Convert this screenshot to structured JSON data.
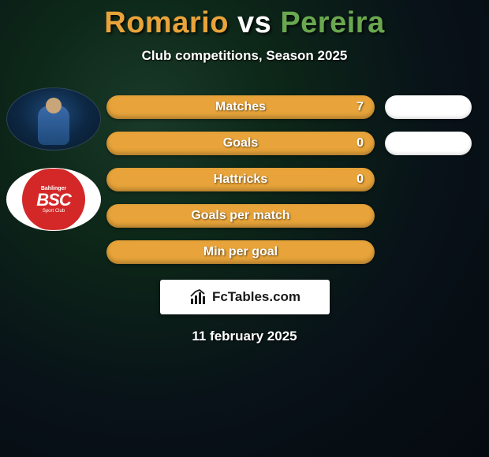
{
  "title": {
    "player1": "Romario",
    "vs": "vs",
    "player2": "Pereira",
    "player1_color": "#e8a43a",
    "vs_color": "#ffffff",
    "player2_color": "#6aa84f"
  },
  "subtitle": "Club competitions, Season 2025",
  "club_badge": {
    "top_text": "Bahlinger",
    "main": "BSC",
    "bottom_text": "Sport Club"
  },
  "stats": {
    "row_fill_color": "#e8a43a",
    "right_pill_color": "#ffffff",
    "label_color": "#ffffff",
    "rows": [
      {
        "label": "Matches",
        "left_value": "7",
        "has_right_pill": true
      },
      {
        "label": "Goals",
        "left_value": "0",
        "has_right_pill": true
      },
      {
        "label": "Hattricks",
        "left_value": "0",
        "has_right_pill": false
      },
      {
        "label": "Goals per match",
        "left_value": "",
        "has_right_pill": false
      },
      {
        "label": "Min per goal",
        "left_value": "",
        "has_right_pill": false
      }
    ]
  },
  "footer": {
    "brand": "FcTables.com",
    "date": "11 february 2025"
  },
  "background_color": "#0a1520"
}
